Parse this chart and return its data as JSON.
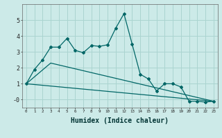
{
  "xlabel": "Humidex (Indice chaleur)",
  "background_color": "#cceae8",
  "grid_color": "#aad4d0",
  "line_color": "#006666",
  "x_humidex": [
    0,
    1,
    2,
    3,
    4,
    5,
    6,
    7,
    8,
    9,
    10,
    11,
    12,
    13,
    14,
    15,
    16,
    17,
    18,
    19,
    20,
    21,
    22,
    23
  ],
  "series1": [
    1.0,
    1.9,
    2.5,
    3.3,
    3.3,
    3.85,
    3.1,
    2.95,
    3.4,
    3.35,
    3.45,
    4.5,
    5.4,
    3.5,
    1.6,
    1.3,
    0.55,
    1.0,
    1.0,
    0.8,
    -0.1,
    -0.1,
    -0.15,
    -0.1
  ],
  "series2_x": [
    0,
    23
  ],
  "series2_y": [
    1.0,
    -0.1
  ],
  "series3_x": [
    0,
    3,
    23
  ],
  "series3_y": [
    1.0,
    2.3,
    -0.1
  ],
  "ylim": [
    -0.5,
    6.0
  ],
  "xlim": [
    -0.5,
    23.5
  ],
  "yticks": [
    0,
    1,
    2,
    3,
    4,
    5
  ],
  "ytick_labels": [
    "-0",
    "1",
    "2",
    "3",
    "4",
    "5"
  ]
}
